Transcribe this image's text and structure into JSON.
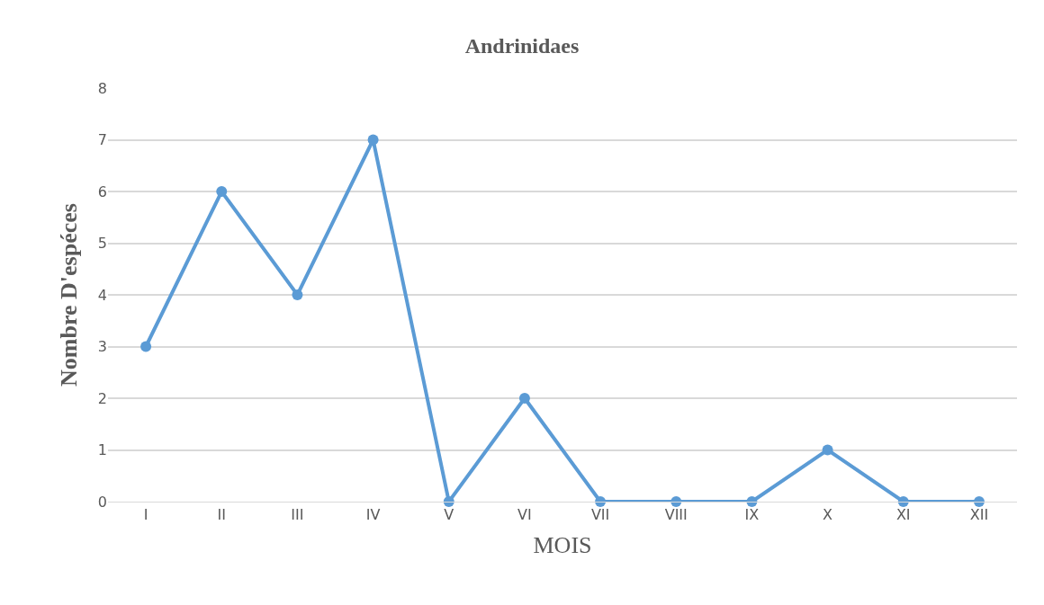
{
  "chart_data": {
    "type": "line",
    "title": "Andrinidaes",
    "xlabel": "MOIS",
    "ylabel": "Nombre D'espéces",
    "categories": [
      "I",
      "II",
      "III",
      "IV",
      "V",
      "VI",
      "VII",
      "VIII",
      "IX",
      "X",
      "XI",
      "XII"
    ],
    "series": [
      {
        "color": "#5b9bd5",
        "values": [
          3,
          6,
          4,
          7,
          0,
          2,
          0,
          0,
          0,
          1,
          0,
          0
        ]
      }
    ],
    "ylim": [
      0,
      8
    ],
    "yticks": [
      0,
      1,
      2,
      3,
      4,
      5,
      6,
      7,
      8
    ],
    "grid": "y",
    "marker": "circle",
    "line_style": "solid",
    "legend": false
  }
}
